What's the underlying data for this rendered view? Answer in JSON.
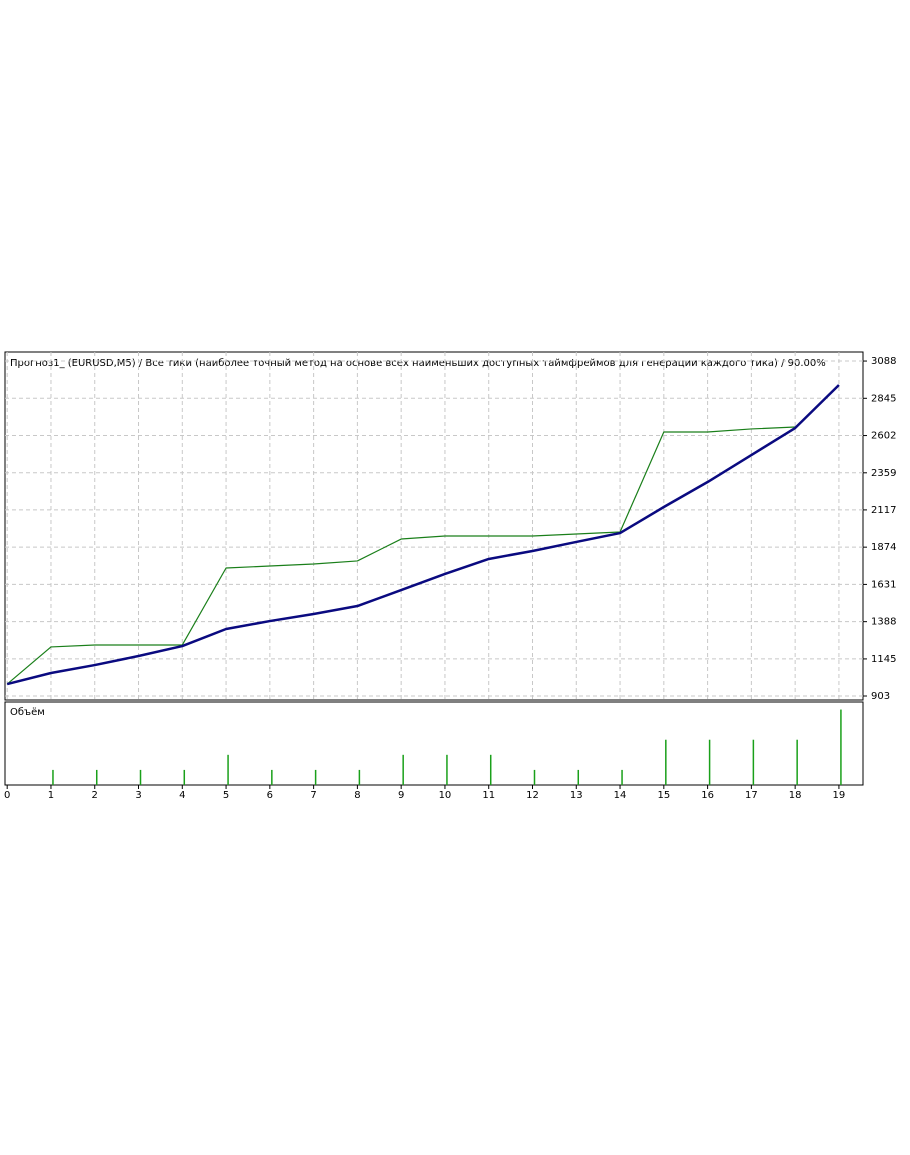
{
  "chart_data": {
    "type": "line",
    "title": "Прогноз1_ (EURUSD,M5) / Все тики (наиболее точный метод на основе всех наименьших доступных таймфреймов для генерации каждого тика) / 90.00%",
    "x": [
      0,
      1,
      2,
      3,
      4,
      5,
      6,
      7,
      8,
      9,
      10,
      11,
      12,
      13,
      14,
      15,
      16,
      17,
      18,
      19
    ],
    "xlim": [
      -0.05,
      19.55
    ],
    "xticks": [
      0,
      1,
      2,
      3,
      4,
      5,
      6,
      7,
      8,
      9,
      10,
      11,
      12,
      13,
      14,
      15,
      16,
      17,
      18,
      19
    ],
    "ylim": [
      877,
      3147
    ],
    "yticks": [
      903,
      1145,
      1388,
      1631,
      1874,
      2117,
      2359,
      2602,
      2845,
      3088
    ],
    "grid": true,
    "series": [
      {
        "color": "#1a7f1a",
        "width": 1.2,
        "values": [
          981,
          1223,
          1236,
          1236,
          1236,
          1738,
          1751,
          1764,
          1784,
          1927,
          1947,
          1947,
          1947,
          1960,
          1973,
          2625,
          2625,
          2645,
          2658,
          null
        ]
      },
      {
        "color": "#0a0a80",
        "width": 2.5,
        "values": [
          981,
          1053,
          1105,
          1164,
          1229,
          1340,
          1392,
          1438,
          1490,
          1594,
          1699,
          1797,
          1849,
          1908,
          1966,
          2136,
          2299,
          2475,
          2651,
          2932
        ]
      }
    ],
    "volume": {
      "label": "Объём",
      "type": "bar",
      "color": "#1aa01a",
      "ylim": [
        0,
        5.5
      ],
      "values": [
        0,
        1,
        1,
        1,
        1,
        2,
        1,
        1,
        1,
        2,
        2,
        2,
        1,
        1,
        1,
        3,
        3,
        3,
        3,
        5
      ]
    }
  }
}
